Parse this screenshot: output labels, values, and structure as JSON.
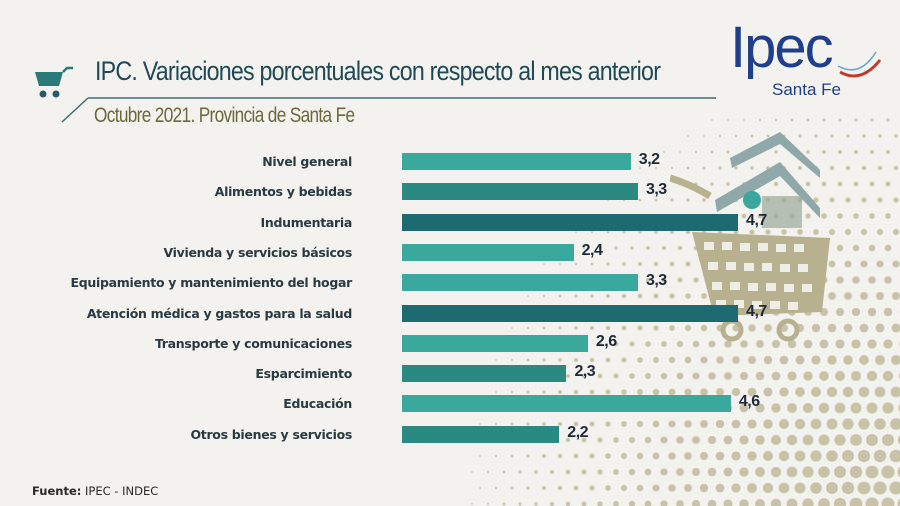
{
  "header": {
    "title": "IPC. Variaciones porcentuales con respecto al mes anterior",
    "subtitle": "Octubre 2021. Provincia de Santa Fe"
  },
  "logo": {
    "word": "Ipec",
    "region": "Santa Fe",
    "color": "#1f3f8a",
    "accent": "#c0392b"
  },
  "source": {
    "prefix": "Fuente:",
    "text": "IPEC - INDEC"
  },
  "colors": {
    "light_teal": "#3aa89c",
    "mid_teal": "#2a8a82",
    "dark_teal": "#1d6a70",
    "dots": "#c8c3a8"
  },
  "chart_data": {
    "type": "bar",
    "orientation": "horizontal",
    "title": "IPC. Variaciones porcentuales con respecto al mes anterior",
    "subtitle": "Octubre 2021. Provincia de Santa Fe",
    "xlabel": "",
    "ylabel": "",
    "xlim": [
      0,
      5
    ],
    "grid": false,
    "categories": [
      "Nivel general",
      "Alimentos y bebidas",
      "Indumentaria",
      "Vivienda y servicios básicos",
      "Equipamiento y mantenimiento del hogar",
      "Atención médica y gastos para la salud",
      "Transporte y comunicaciones",
      "Esparcimiento",
      "Educación",
      "Otros bienes y servicios"
    ],
    "values": [
      3.2,
      3.3,
      4.7,
      2.4,
      3.3,
      4.7,
      2.6,
      2.3,
      4.6,
      2.2
    ],
    "value_labels": [
      "3,2",
      "3,3",
      "4,7",
      "2,4",
      "3,3",
      "4,7",
      "2,6",
      "2,3",
      "4,6",
      "2,2"
    ],
    "bar_colors": [
      "#3aa89c",
      "#2a8a82",
      "#1d6a70",
      "#3aa89c",
      "#3aa89c",
      "#1d6a70",
      "#3aa89c",
      "#2a8a82",
      "#3aa89c",
      "#2a8a82"
    ],
    "source": "Fuente: IPEC - INDEC"
  }
}
